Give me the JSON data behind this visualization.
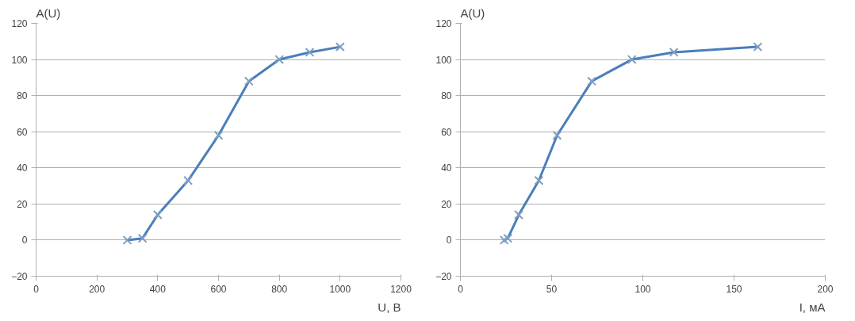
{
  "chart_data": [
    {
      "type": "line",
      "ylabel": "A(U)",
      "xlabel": "U, B",
      "xlim": [
        0,
        1200
      ],
      "xticks": [
        0,
        200,
        400,
        600,
        800,
        1000,
        1200
      ],
      "ylim": [
        -20,
        120
      ],
      "yticks": [
        -20,
        0,
        20,
        40,
        60,
        80,
        100,
        120
      ],
      "grid": "y",
      "marker": "cross",
      "x": [
        300,
        350,
        400,
        500,
        600,
        700,
        800,
        900,
        1000
      ],
      "series": [
        {
          "color": "#4a7ebb",
          "values": [
            0,
            1,
            14,
            33,
            58,
            88,
            100,
            104,
            107
          ]
        }
      ]
    },
    {
      "type": "line",
      "ylabel": "A(U)",
      "xlabel": "I, мА",
      "xlim": [
        0,
        200
      ],
      "xticks": [
        0,
        50,
        100,
        150,
        200
      ],
      "ylim": [
        -20,
        120
      ],
      "yticks": [
        -20,
        0,
        20,
        40,
        60,
        80,
        100,
        120
      ],
      "grid": "y",
      "marker": "cross",
      "x": [
        24,
        26,
        32,
        43,
        53,
        72,
        94,
        117,
        163
      ],
      "series": [
        {
          "color": "#4a7ebb",
          "values": [
            0,
            1,
            14,
            33,
            58,
            88,
            100,
            104,
            107
          ]
        }
      ]
    }
  ]
}
